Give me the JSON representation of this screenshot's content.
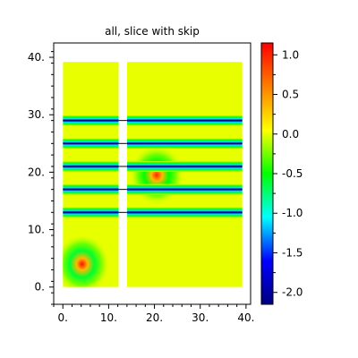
{
  "chart_data": {
    "type": "heatmap",
    "title": "all, slice with skip",
    "xlabel": "",
    "ylabel": "",
    "x_range": [
      -2,
      41
    ],
    "y_range": [
      -3,
      42.5
    ],
    "x_ticks": [
      {
        "value": 0,
        "label": "0."
      },
      {
        "value": 10,
        "label": "10."
      },
      {
        "value": 20,
        "label": "20."
      },
      {
        "value": 30,
        "label": "30."
      },
      {
        "value": 40,
        "label": "40."
      }
    ],
    "y_ticks": [
      {
        "value": 0,
        "label": "0."
      },
      {
        "value": 10,
        "label": "10."
      },
      {
        "value": 20,
        "label": "20."
      },
      {
        "value": 30,
        "label": "30."
      },
      {
        "value": 40,
        "label": "40."
      }
    ],
    "colorbar": {
      "range": [
        -2.15,
        1.15
      ],
      "ticks": [
        {
          "value": 1.0,
          "label": "1.0"
        },
        {
          "value": 0.5,
          "label": "0.5"
        },
        {
          "value": 0.0,
          "label": "0.0"
        },
        {
          "value": -0.5,
          "label": "-0.5"
        },
        {
          "value": -1.0,
          "label": "-1.0"
        },
        {
          "value": -1.5,
          "label": "-1.5"
        },
        {
          "value": -2.0,
          "label": "-2.0"
        }
      ],
      "colors": [
        "#00007f",
        "#0000ff",
        "#00ffff",
        "#00ff00",
        "#ffff00",
        "#ff7f00",
        "#ff0000"
      ]
    },
    "background_value": 0.0,
    "regions": [
      {
        "x": [
          0,
          12.2
        ],
        "y": [
          0,
          39.2
        ]
      },
      {
        "x": [
          14,
          39.2
        ],
        "y": [
          0,
          39.2
        ]
      }
    ],
    "bands": [
      {
        "y": 13.0,
        "value": -2.0
      },
      {
        "y": 17.0,
        "value": -2.0
      },
      {
        "y": 21.0,
        "value": -2.0
      },
      {
        "y": 25.0,
        "value": -2.0
      },
      {
        "y": 29.0,
        "value": -2.0
      }
    ],
    "features": [
      {
        "x": 4.2,
        "y": 4.0,
        "peak": 1.1,
        "ring": -0.6
      },
      {
        "x": 20.5,
        "y": 19.5,
        "peak": 1.0,
        "ring": -0.5
      }
    ]
  }
}
